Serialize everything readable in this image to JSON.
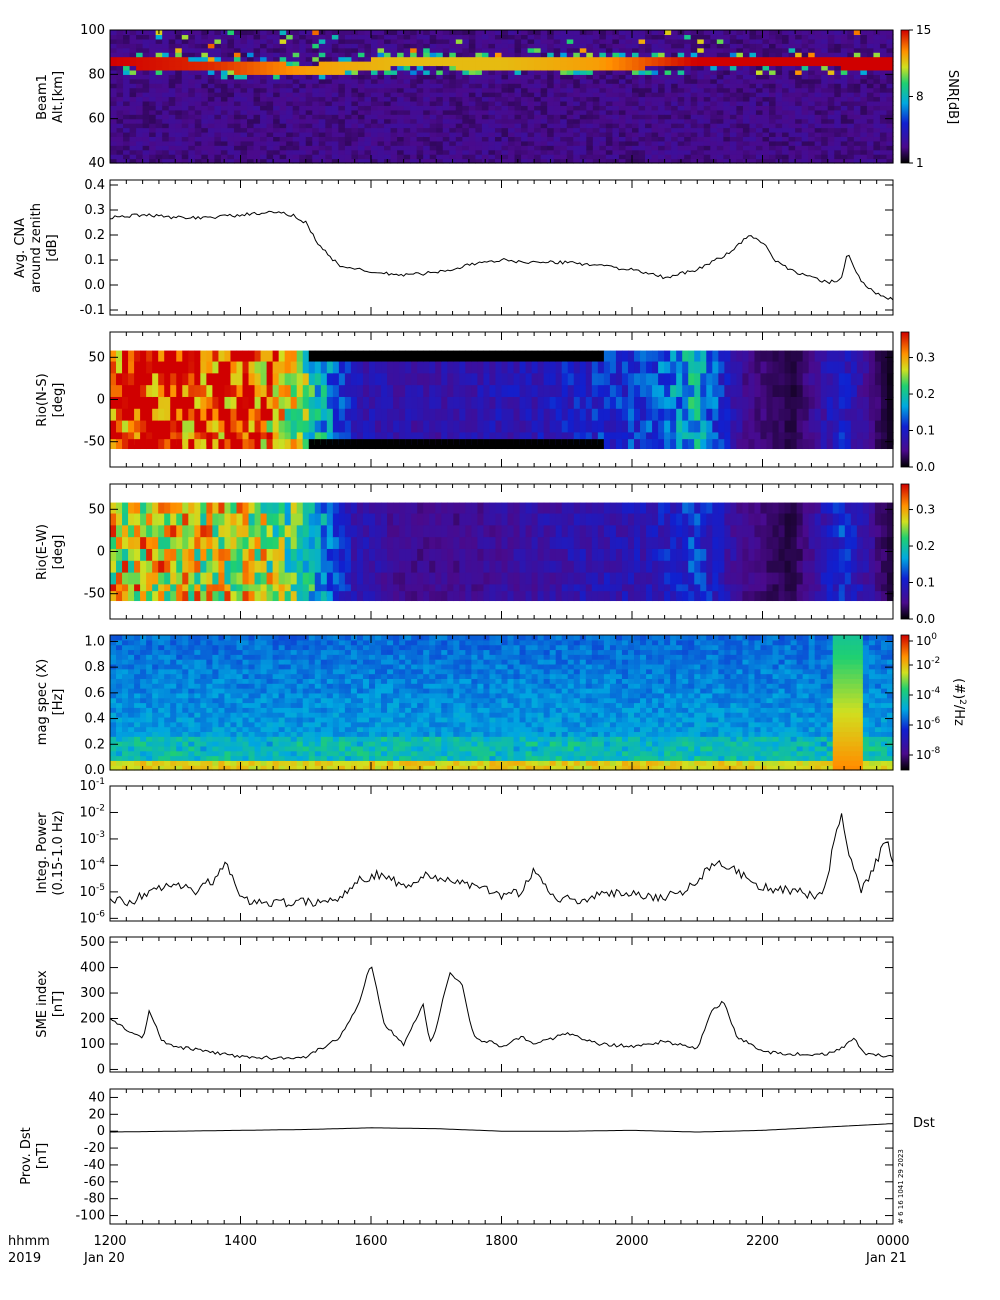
{
  "figure": {
    "time_axis": {
      "row1_label": "hhmm",
      "row2_label": "2019",
      "ticks": [
        "1200",
        "1400",
        "1600",
        "1800",
        "2000",
        "2200",
        "0000"
      ],
      "start_date": "Jan 20",
      "end_date": "Jan 21",
      "xlim_hours": [
        12,
        24
      ]
    },
    "side_note": "Dst",
    "stamp": "# 6 16 1041 29 2023"
  },
  "chart_data": [
    {
      "type": "heatmap",
      "ylabel_line1": "Beam1",
      "ylabel_line2": "Alt.[km]",
      "ylim": [
        40,
        100
      ],
      "yticks": [
        "40",
        "60",
        "80",
        "100"
      ],
      "colorbar": {
        "label": "SNR[dB]",
        "ticks": [
          "1",
          "8",
          "15"
        ],
        "scale": "linear",
        "range": [
          1,
          15
        ]
      },
      "band_center_km": [
        86,
        84,
        82,
        86,
        85,
        85,
        86,
        86,
        85
      ],
      "band_strength": [
        1,
        0.9,
        0.6,
        0.5,
        0.5,
        0.6,
        1,
        1,
        1
      ]
    },
    {
      "type": "line",
      "ylabel_line1": "Avg. CNA",
      "ylabel_line2": "around zenith",
      "ylabel_line3": "[dB]",
      "ylim": [
        -0.12,
        0.42
      ],
      "yticks": [
        "-0.1",
        "0.0",
        "0.1",
        "0.2",
        "0.3",
        "0.4"
      ],
      "x": [
        12.0,
        12.5,
        13.0,
        13.5,
        14.0,
        14.5,
        14.8,
        15.0,
        15.2,
        15.5,
        16.0,
        16.5,
        17.0,
        17.5,
        18.0,
        18.5,
        19.0,
        19.5,
        20.0,
        20.5,
        21.0,
        21.5,
        21.8,
        22.0,
        22.2,
        22.5,
        23.0,
        23.2,
        23.3,
        23.5,
        23.7,
        24.0
      ],
      "values": [
        0.27,
        0.28,
        0.27,
        0.27,
        0.28,
        0.29,
        0.28,
        0.25,
        0.16,
        0.08,
        0.05,
        0.04,
        0.05,
        0.08,
        0.1,
        0.09,
        0.09,
        0.08,
        0.06,
        0.03,
        0.06,
        0.13,
        0.2,
        0.17,
        0.1,
        0.05,
        0.01,
        0.02,
        0.13,
        0.02,
        -0.03,
        -0.06
      ]
    },
    {
      "type": "heatmap",
      "ylabel_line1": "Rio(N-S)",
      "ylabel_line2": "[deg]",
      "ylim": [
        -80,
        80
      ],
      "yticks": [
        "-50",
        "0",
        "50"
      ],
      "colorbar": {
        "label": "",
        "ticks": [
          "0.0",
          "0.1",
          "0.2",
          "0.3"
        ],
        "scale": "linear",
        "range": [
          0,
          0.37
        ]
      },
      "beam_angles_deg": [
        52,
        38,
        24,
        10,
        -4,
        -18,
        -32,
        -46,
        -54
      ],
      "time_profile": [
        0.37,
        0.37,
        0.36,
        0.35,
        0.22,
        0.08,
        0.07,
        0.07,
        0.08,
        0.09,
        0.11,
        0.12,
        0.18,
        0.05,
        0.02,
        0.1,
        0.01
      ]
    },
    {
      "type": "heatmap",
      "ylabel_line1": "Rio(E-W)",
      "ylabel_line2": "[deg]",
      "ylim": [
        -80,
        80
      ],
      "yticks": [
        "-50",
        "0",
        "50"
      ],
      "colorbar": {
        "label": "",
        "ticks": [
          "0.0",
          "0.1",
          "0.2",
          "0.3"
        ],
        "scale": "linear",
        "range": [
          0,
          0.37
        ]
      },
      "beam_angles_deg": [
        52,
        38,
        24,
        10,
        -4,
        -18,
        -32,
        -46,
        -54
      ],
      "time_profile": [
        0.28,
        0.28,
        0.27,
        0.27,
        0.2,
        0.08,
        0.05,
        0.05,
        0.06,
        0.07,
        0.08,
        0.08,
        0.12,
        0.05,
        0.02,
        0.12,
        0.02
      ]
    },
    {
      "type": "heatmap",
      "ylabel_line1": "mag spec (X)",
      "ylabel_line2": "[Hz]",
      "ylim": [
        0.0,
        1.05
      ],
      "yticks": [
        "0.0",
        "0.2",
        "0.4",
        "0.6",
        "0.8",
        "1.0"
      ],
      "colorbar": {
        "label": "(#)^2/Hz",
        "ticks": [
          "10^0",
          "10^-2",
          "10^-4",
          "10^-6",
          "10^-8"
        ],
        "scale": "log",
        "range": [
          -9,
          0
        ]
      },
      "burst_hours": [
        23.3
      ]
    },
    {
      "type": "line",
      "ylabel_line1": "Integ. Power",
      "ylabel_line2": "(0.15-1.0 Hz)",
      "yscale": "log",
      "ylim_log10": [
        -6.1,
        -1
      ],
      "yticks": [
        "10^-6",
        "10^-5",
        "10^-4",
        "10^-3",
        "10^-2",
        "10^-1"
      ],
      "x": [
        12.0,
        12.3,
        12.6,
        13.0,
        13.3,
        13.6,
        13.8,
        14.0,
        14.5,
        15.0,
        15.5,
        15.8,
        16.2,
        16.5,
        16.8,
        17.2,
        17.6,
        18.0,
        18.3,
        18.5,
        18.8,
        19.2,
        19.6,
        20.0,
        20.4,
        20.8,
        21.0,
        21.3,
        21.6,
        22.0,
        22.5,
        22.9,
        23.0,
        23.2,
        23.3,
        23.5,
        23.7,
        23.9,
        24.0
      ],
      "values": [
        6e-06,
        4e-06,
        1e-05,
        2e-05,
        1e-05,
        3e-05,
        0.00012,
        5e-06,
        4e-06,
        4e-06,
        5e-06,
        3e-05,
        5e-05,
        1.5e-05,
        4e-05,
        3e-05,
        1.5e-05,
        8e-06,
        1e-05,
        8e-05,
        6e-06,
        5e-06,
        8e-06,
        1e-05,
        6e-06,
        1e-05,
        3e-05,
        0.00015,
        6e-05,
        1.5e-05,
        1e-05,
        7e-06,
        5e-05,
        0.01,
        0.0005,
        1e-05,
        8e-05,
        0.001,
        0.0001
      ]
    },
    {
      "type": "line",
      "ylabel_line1": "SME index",
      "ylabel_line2": "[nT]",
      "ylim": [
        -10,
        520
      ],
      "yticks": [
        "0",
        "100",
        "200",
        "300",
        "400",
        "500"
      ],
      "x": [
        12.0,
        12.3,
        12.5,
        12.6,
        12.8,
        13.0,
        13.5,
        14.0,
        14.5,
        15.0,
        15.5,
        15.8,
        16.0,
        16.1,
        16.2,
        16.5,
        16.8,
        16.9,
        17.0,
        17.2,
        17.4,
        17.5,
        17.6,
        17.8,
        18.0,
        18.3,
        18.5,
        19.0,
        19.5,
        20.0,
        20.5,
        21.0,
        21.2,
        21.4,
        21.6,
        22.0,
        22.5,
        23.0,
        23.2,
        23.4,
        23.6,
        24.0
      ],
      "values": [
        205,
        150,
        120,
        230,
        110,
        90,
        70,
        50,
        45,
        50,
        120,
        250,
        420,
        300,
        180,
        100,
        260,
        100,
        160,
        380,
        330,
        200,
        120,
        110,
        90,
        130,
        100,
        140,
        100,
        90,
        110,
        80,
        220,
        270,
        130,
        70,
        60,
        60,
        80,
        120,
        60,
        50
      ]
    },
    {
      "type": "line",
      "ylabel_line1": "Prov. Dst",
      "ylabel_line2": "[nT]",
      "ylim": [
        -110,
        50
      ],
      "yticks": [
        "-100",
        "-80",
        "-60",
        "-40",
        "-20",
        "0",
        "20",
        "40"
      ],
      "x": [
        12,
        13,
        14,
        15,
        16,
        17,
        18,
        19,
        20,
        21,
        22,
        23,
        24
      ],
      "values": [
        -1,
        0,
        1,
        2,
        4,
        3,
        0,
        0,
        1,
        -1,
        1,
        5,
        9
      ]
    }
  ]
}
